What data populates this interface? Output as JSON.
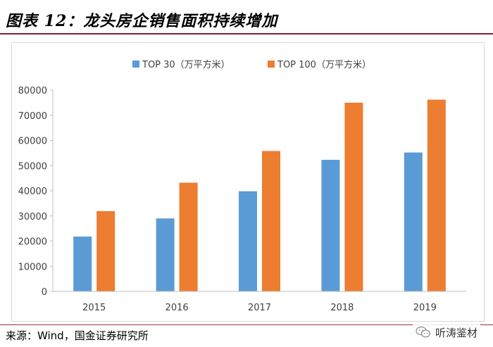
{
  "header": {
    "title": "图表 12：龙头房企销售面积持续增加"
  },
  "chart_data": {
    "type": "bar",
    "categories": [
      "2015",
      "2016",
      "2017",
      "2018",
      "2019"
    ],
    "series": [
      {
        "name": "TOP 30（万平方米）",
        "color": "#5b9bd5",
        "values": [
          21800,
          29000,
          39800,
          52300,
          55200
        ]
      },
      {
        "name": "TOP 100（万平方米）",
        "color": "#ed7d31",
        "values": [
          31900,
          43200,
          55800,
          75000,
          76200
        ]
      }
    ],
    "ylim": [
      0,
      80000
    ],
    "yticks": [
      "0",
      "10000",
      "20000",
      "30000",
      "40000",
      "50000",
      "60000",
      "70000",
      "80000"
    ],
    "title": "",
    "xlabel": "",
    "ylabel": "",
    "legend_position": "top-center",
    "grid": false
  },
  "footer": {
    "source": "来源：Wind，国金证券研究所"
  },
  "watermark": {
    "text": "听涛鉴材"
  }
}
